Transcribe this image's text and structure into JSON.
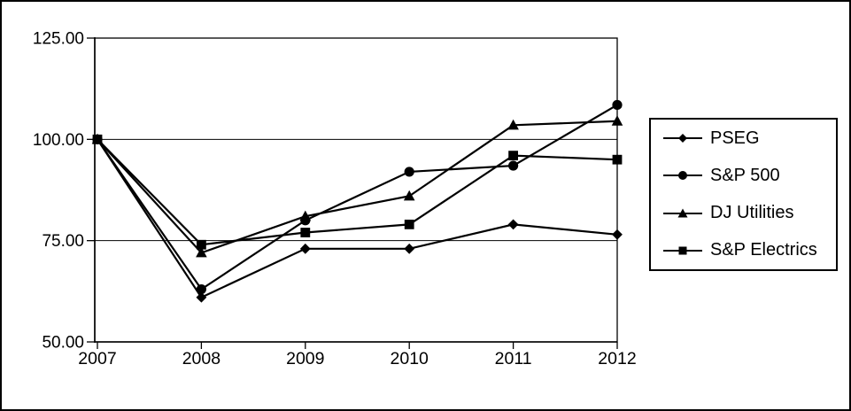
{
  "figure": {
    "background": "#ffffff",
    "border_color": "#000000",
    "line_color": "#000000",
    "text_color": "#000000"
  },
  "chart_data": {
    "type": "line",
    "title": "",
    "x_labels": [
      "2007",
      "2008",
      "2009",
      "2010",
      "2011",
      "2012"
    ],
    "y_ticks": [
      50,
      75,
      100,
      125
    ],
    "y_tick_labels": [
      "50.00",
      "75.00",
      "100.00",
      "125.00"
    ],
    "ylim": [
      50,
      125
    ],
    "grid": "horizontal",
    "legend_position": "right",
    "series": [
      {
        "name": "PSEG",
        "marker": "diamond",
        "color": "#000000",
        "values": [
          100,
          61,
          73,
          73,
          79,
          76.5
        ]
      },
      {
        "name": "S&P 500",
        "marker": "circle",
        "color": "#000000",
        "values": [
          100,
          63,
          80,
          92,
          93.5,
          108.5
        ]
      },
      {
        "name": "DJ Utilities",
        "marker": "triangle",
        "color": "#000000",
        "values": [
          100,
          72,
          81,
          86,
          103.5,
          104.5
        ]
      },
      {
        "name": "S&P Electrics",
        "marker": "square",
        "color": "#000000",
        "values": [
          100,
          74,
          77,
          79,
          96,
          95
        ]
      }
    ]
  }
}
